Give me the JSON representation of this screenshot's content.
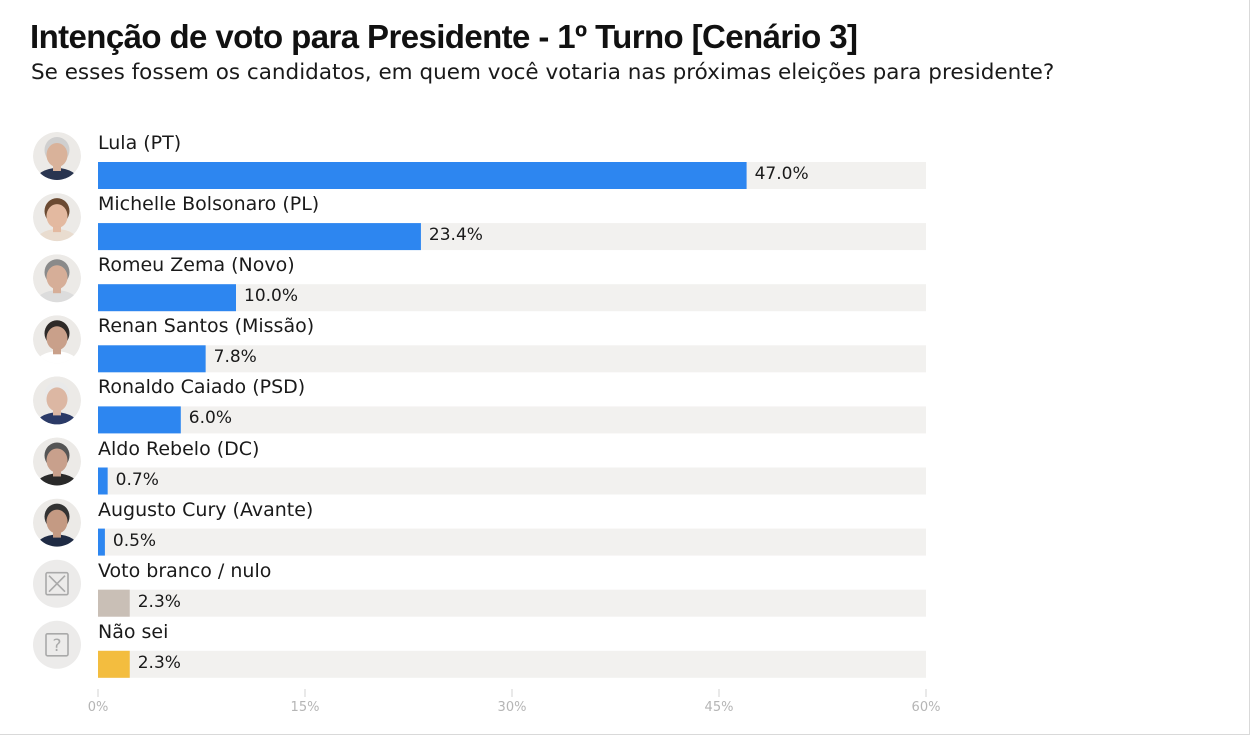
{
  "title": "Intenção de voto para Presidente - 1º Turno [Cenário 3]",
  "subtitle": "Se esses fossem os candidatos, em quem você votaria nas próximas eleições para presidente?",
  "colors": {
    "candidate": "#2d86f0",
    "blank_null": "#c9bfb6",
    "dont_know": "#f3bd3f",
    "track": "#f2f1ef"
  },
  "chart_data": {
    "type": "bar",
    "orientation": "horizontal",
    "categories": [
      "Lula (PT)",
      "Michelle Bolsonaro (PL)",
      "Romeu Zema (Novo)",
      "Renan Santos (Missão)",
      "Ronaldo Caiado (PSD)",
      "Aldo Rebelo (DC)",
      "Augusto Cury (Avante)",
      "Voto branco / nulo",
      "Não sei"
    ],
    "values": [
      47.0,
      23.4,
      10.0,
      7.8,
      6.0,
      0.7,
      0.5,
      2.3,
      2.3
    ],
    "value_labels": [
      "47.0%",
      "23.4%",
      "10.0%",
      "7.8%",
      "6.0%",
      "0.7%",
      "0.5%",
      "2.3%",
      "2.3%"
    ],
    "bar_colors": [
      "candidate",
      "candidate",
      "candidate",
      "candidate",
      "candidate",
      "candidate",
      "candidate",
      "blank_null",
      "dont_know"
    ],
    "icons": [
      "avatar-photo",
      "avatar-photo",
      "avatar-photo",
      "avatar-photo",
      "avatar-photo",
      "avatar-photo",
      "avatar-photo",
      "x-box-icon",
      "question-box-icon"
    ],
    "xlim": [
      0,
      60
    ],
    "x_ticks": [
      0,
      15,
      30,
      45,
      60
    ],
    "x_tick_labels": [
      "0%",
      "15%",
      "30%",
      "45%",
      "60%"
    ],
    "grid": false,
    "legend": "none"
  }
}
